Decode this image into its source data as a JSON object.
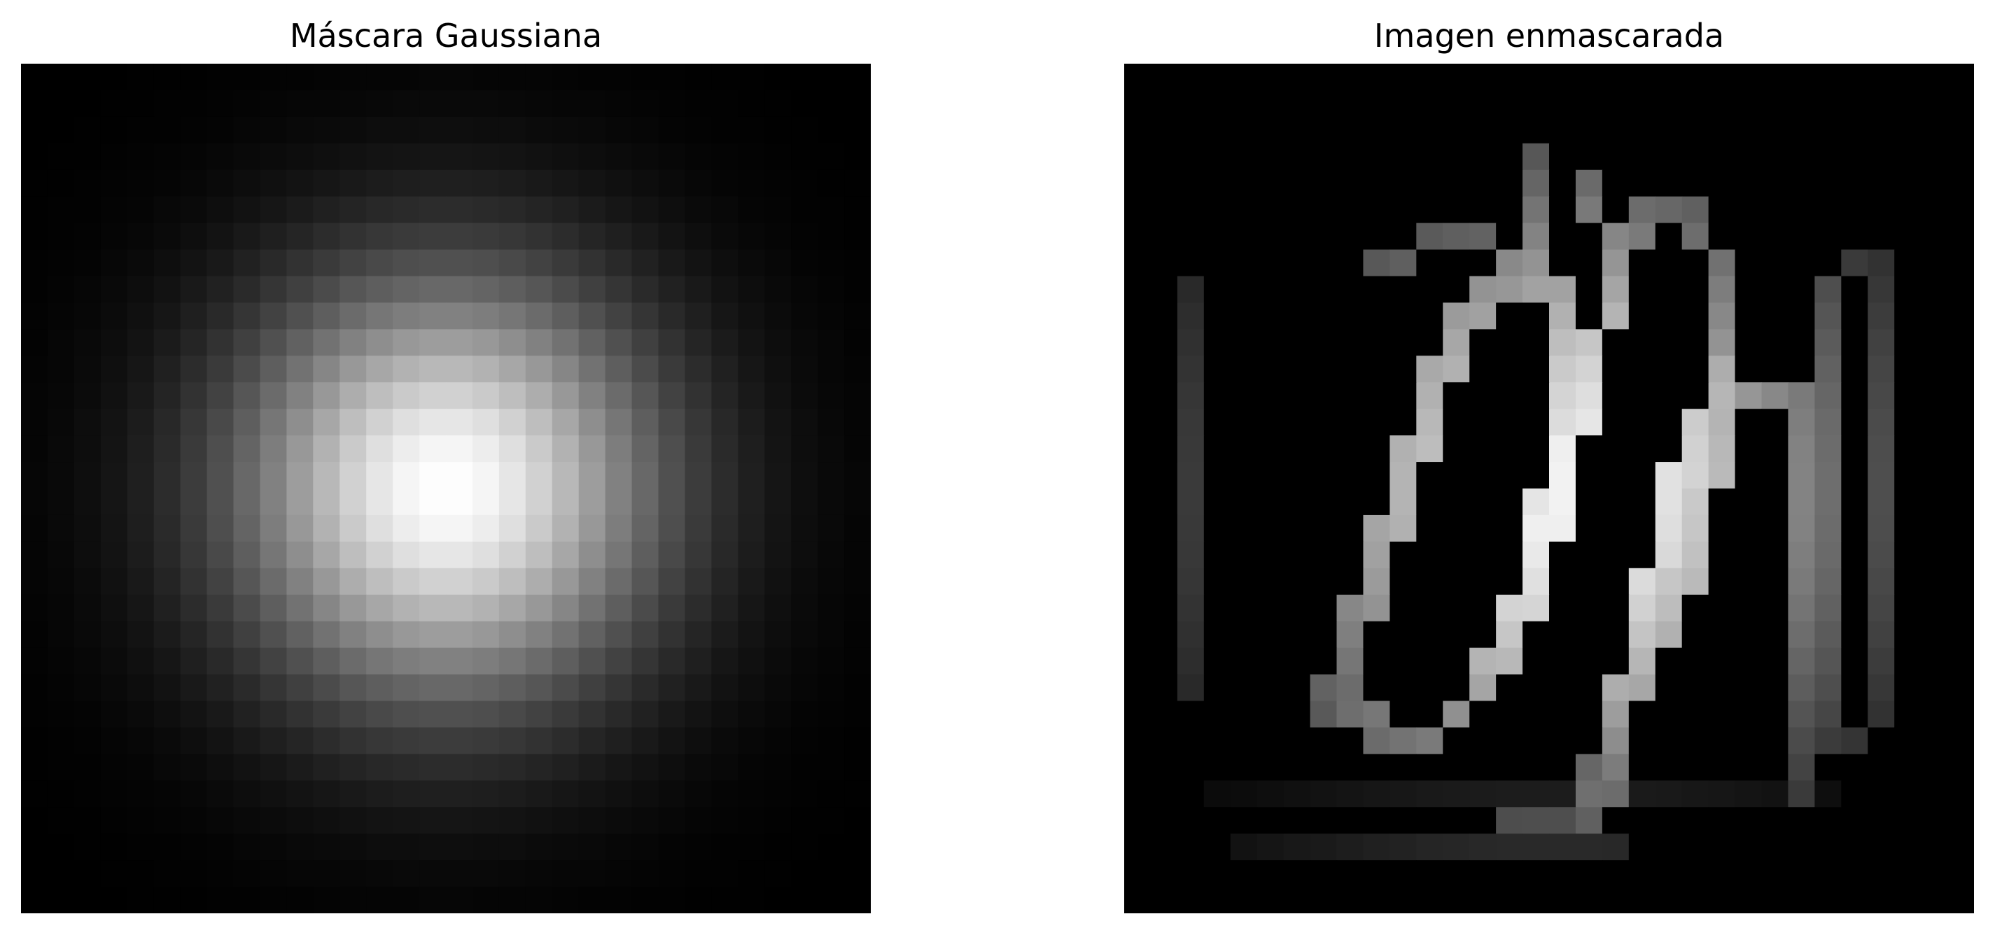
{
  "chart_data": [
    {
      "type": "heatmap",
      "title": "Máscara Gaussiana",
      "colormap": "gray",
      "axis": "off",
      "grid_size": [
        32,
        32
      ],
      "center": [
        16,
        16
      ],
      "sigma": 5.6
    },
    {
      "type": "heatmap",
      "title": "Imagen enmascarada",
      "colormap": "gray",
      "axis": "off",
      "grid_size": [
        32,
        32
      ],
      "content": "handwritten digit strokes weighted by the Gaussian mask",
      "strokes": [
        {
          "points": [
            [
              2,
              23
            ],
            [
              2,
              8
            ]
          ],
          "value": 0.7
        },
        {
          "points": [
            [
              7,
              24
            ],
            [
              9,
              18
            ],
            [
              11,
              12
            ],
            [
              12,
              9
            ],
            [
              14,
              7
            ]
          ],
          "value": 0.85
        },
        {
          "points": [
            [
              14,
              7
            ],
            [
              13,
              6
            ],
            [
              11,
              6
            ],
            [
              9,
              7
            ]
          ],
          "value": 0.7
        },
        {
          "points": [
            [
              8,
              24
            ],
            [
              10,
              25
            ],
            [
              12,
              24
            ],
            [
              14,
              21
            ],
            [
              16,
              15
            ],
            [
              17,
              11
            ],
            [
              18,
              7
            ],
            [
              17,
              4
            ]
          ],
          "value": 0.95
        },
        {
          "points": [
            [
              15,
              3
            ],
            [
              15,
              6
            ],
            [
              16,
              10
            ],
            [
              16,
              13
            ],
            [
              14,
              21
            ]
          ],
          "value": 0.9
        },
        {
          "points": [
            [
              18,
              7
            ],
            [
              19,
              5
            ],
            [
              21,
              5
            ],
            [
              22,
              8
            ],
            [
              22,
              11
            ]
          ],
          "value": 0.9
        },
        {
          "points": [
            [
              22,
              11
            ],
            [
              21,
              13
            ],
            [
              20,
              16
            ],
            [
              19,
              20
            ],
            [
              18,
              25
            ],
            [
              17,
              28
            ]
          ],
          "value": 1.0
        },
        {
          "points": [
            [
              23,
              12
            ],
            [
              25,
              12
            ],
            [
              25,
              27
            ]
          ],
          "value": 0.9
        },
        {
          "points": [
            [
              22,
              13
            ],
            [
              21,
              16
            ],
            [
              20,
              21
            ]
          ],
          "value": 0.95
        },
        {
          "points": [
            [
              26,
              8
            ],
            [
              26,
              24
            ]
          ],
          "value": 0.85
        },
        {
          "points": [
            [
              27,
              7
            ],
            [
              28,
              7
            ],
            [
              28,
              24
            ],
            [
              26,
              25
            ]
          ],
          "value": 0.8
        },
        {
          "points": [
            [
              14,
              28
            ],
            [
              16,
              28
            ],
            [
              17,
              26
            ]
          ],
          "value": 0.8
        },
        {
          "points": [
            [
              4,
              29
            ],
            [
              18,
              29
            ]
          ],
          "value": 0.5
        },
        {
          "points": [
            [
              3,
              27
            ],
            [
              26,
              27
            ]
          ],
          "value": 0.25
        }
      ]
    }
  ]
}
